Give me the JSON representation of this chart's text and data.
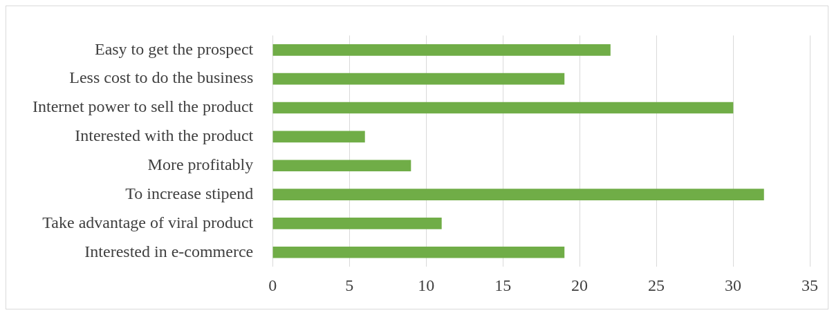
{
  "chart_data": {
    "type": "bar",
    "orientation": "horizontal",
    "categories": [
      "Easy to get the prospect",
      "Less cost to do the business",
      "Internet power to sell the product",
      "Interested with the product",
      "More profitably",
      "To increase stipend",
      "Take advantage of viral product",
      "Interested in e-commerce"
    ],
    "values": [
      22,
      19,
      30,
      6,
      9,
      32,
      11,
      19
    ],
    "color": "#70ad47",
    "xlim": [
      0,
      35
    ],
    "xticks": [
      0,
      5,
      10,
      15,
      20,
      25,
      30,
      35
    ],
    "grid": "x"
  }
}
